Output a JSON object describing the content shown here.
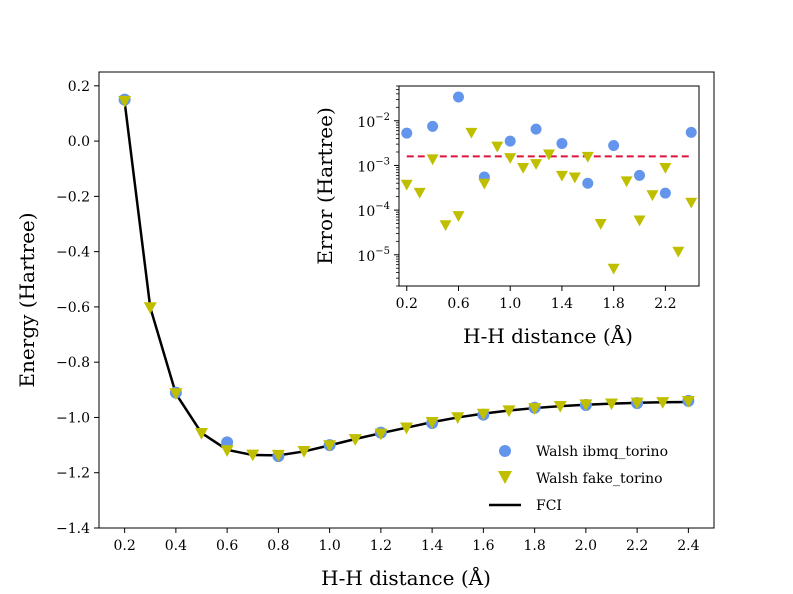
{
  "chart_data": [
    {
      "type": "scatter",
      "xlabel": "H-H distance (Å)",
      "ylabel": "Energy (Hartree)",
      "xlim": [
        0.1,
        2.5
      ],
      "ylim": [
        -1.4,
        0.25
      ],
      "xticks": [
        0.2,
        0.4,
        0.6,
        0.8,
        1.0,
        1.2,
        1.4,
        1.6,
        1.8,
        2.0,
        2.2,
        2.4
      ],
      "xtick_labels": [
        "0.2",
        "0.4",
        "0.6",
        "0.8",
        "1.0",
        "1.2",
        "1.4",
        "1.6",
        "1.8",
        "2.0",
        "2.2",
        "2.4"
      ],
      "yticks": [
        0.2,
        0.0,
        -0.2,
        -0.4,
        -0.6,
        -0.8,
        -1.0,
        -1.2,
        -1.4
      ],
      "ytick_labels": [
        "0.2",
        "0.0",
        "−0.2",
        "−0.4",
        "−0.6",
        "−0.8",
        "−1.0",
        "−1.2",
        "−1.4"
      ],
      "legend_position": "lower-right",
      "series": [
        {
          "name": "Walsh ibmq_torino",
          "marker": "circle",
          "color": "#6495ED",
          "x": [
            0.2,
            0.4,
            0.6,
            0.8,
            1.0,
            1.2,
            1.4,
            1.6,
            1.8,
            2.0,
            2.2,
            2.4
          ],
          "y": [
            0.15,
            -0.91,
            -1.09,
            -1.14,
            -1.1,
            -1.055,
            -1.02,
            -0.99,
            -0.965,
            -0.955,
            -0.948,
            -0.94
          ]
        },
        {
          "name": "Walsh fake_torino",
          "marker": "triangle-down",
          "color": "#BFBF00",
          "x": [
            0.2,
            0.3,
            0.4,
            0.5,
            0.6,
            0.7,
            0.8,
            0.9,
            1.0,
            1.1,
            1.2,
            1.3,
            1.4,
            1.5,
            1.6,
            1.7,
            1.8,
            1.9,
            2.0,
            2.1,
            2.2,
            2.3,
            2.4
          ],
          "y": [
            0.146,
            -0.601,
            -0.912,
            -1.056,
            -1.118,
            -1.134,
            -1.135,
            -1.121,
            -1.1,
            -1.078,
            -1.058,
            -1.036,
            -1.016,
            -0.999,
            -0.986,
            -0.974,
            -0.966,
            -0.958,
            -0.952,
            -0.949,
            -0.946,
            -0.944,
            -0.94
          ]
        },
        {
          "name": "FCI",
          "marker": "line",
          "color": "#000000",
          "x": [
            0.2,
            0.3,
            0.4,
            0.5,
            0.6,
            0.7,
            0.8,
            0.9,
            1.0,
            1.1,
            1.2,
            1.3,
            1.4,
            1.5,
            1.6,
            1.7,
            1.8,
            1.9,
            2.0,
            2.1,
            2.2,
            2.3,
            2.4
          ],
          "y": [
            0.142,
            -0.602,
            -0.914,
            -1.056,
            -1.117,
            -1.136,
            -1.137,
            -1.123,
            -1.101,
            -1.078,
            -1.057,
            -1.037,
            -1.017,
            -1.0,
            -0.986,
            -0.975,
            -0.966,
            -0.959,
            -0.954,
            -0.95,
            -0.947,
            -0.945,
            -0.944
          ]
        }
      ]
    },
    {
      "type": "scatter",
      "inset": true,
      "xlabel": "H-H distance (Å)",
      "ylabel": "Error (Hartree)",
      "yscale": "log",
      "xlim": [
        0.14,
        2.46
      ],
      "ylim": [
        2e-06,
        0.06
      ],
      "xticks": [
        0.2,
        0.6,
        1.0,
        1.4,
        1.8,
        2.2
      ],
      "xtick_labels": [
        "0.2",
        "0.6",
        "1.0",
        "1.4",
        "1.8",
        "2.2"
      ],
      "yticks": [
        1e-05,
        0.0001,
        0.001,
        0.01
      ],
      "ytick_base": [
        "10",
        "10",
        "10",
        "10"
      ],
      "ytick_exp": [
        "−5",
        "−4",
        "−3",
        "−2"
      ],
      "reference_line": {
        "y": 0.0016,
        "style": "dashed",
        "color": "#DC143C"
      },
      "series": [
        {
          "name": "Walsh ibmq_torino",
          "marker": "circle",
          "color": "#6495ED",
          "x": [
            0.2,
            0.4,
            0.6,
            0.8,
            1.0,
            1.2,
            1.4,
            1.6,
            1.8,
            2.0,
            2.2,
            2.4
          ],
          "y": [
            0.0053,
            0.0075,
            0.034,
            0.00055,
            0.0035,
            0.0065,
            0.0031,
            0.0004,
            0.0028,
            0.0006,
            0.00024,
            0.0055
          ]
        },
        {
          "name": "Walsh fake_torino",
          "marker": "triangle-down",
          "color": "#BFBF00",
          "x": [
            0.2,
            0.3,
            0.4,
            0.5,
            0.6,
            0.7,
            0.8,
            0.9,
            1.0,
            1.1,
            1.2,
            1.3,
            1.4,
            1.5,
            1.6,
            1.7,
            1.8,
            1.9,
            2.0,
            2.1,
            2.2,
            2.3,
            2.4
          ],
          "y": [
            0.00038,
            0.00025,
            0.0014,
            4.7e-05,
            7.5e-05,
            0.0055,
            0.0004,
            0.0027,
            0.0015,
            0.0009,
            0.0011,
            0.0018,
            0.0006,
            0.00055,
            0.0016,
            5e-05,
            5e-06,
            0.00045,
            6e-05,
            0.00022,
            0.0009,
            1.2e-05,
            0.00015
          ]
        }
      ]
    }
  ]
}
